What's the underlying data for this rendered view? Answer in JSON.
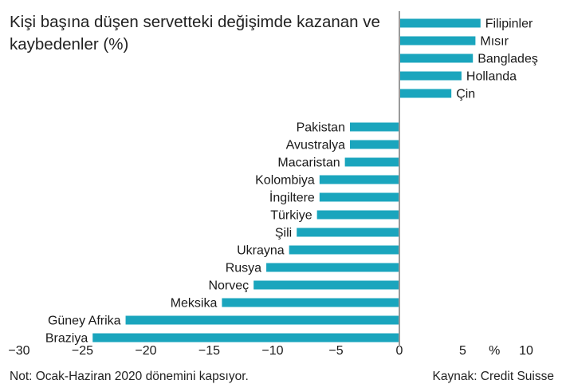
{
  "title": "Kişi başına düşen servetteki değişimde kazanan ve kaybedenler (%)",
  "note": "Not: Ocak-Haziran 2020 dönemini kapsıyor.",
  "source": "Kaynak: Credit Suisse",
  "chart_data": {
    "type": "bar",
    "orientation": "horizontal",
    "title": "Kişi başına düşen servetteki değişimde kazanan ve kaybedenler (%)",
    "xunit_label": "%",
    "xlim": [
      -30,
      10
    ],
    "xticks": [
      -30,
      -25,
      -20,
      -15,
      -10,
      -5,
      0,
      5,
      10
    ],
    "bar_color": "#1aa5bd",
    "categories": [
      "Filipinler",
      "Mısır",
      "Bangladeş",
      "Hollanda",
      "Çin",
      "Pakistan",
      "Avustralya",
      "Macaristan",
      "Kolombiya",
      "İngiltere",
      "Türkiye",
      "Şili",
      "Ukrayna",
      "Rusya",
      "Norveç",
      "Meksika",
      "Güney Afrika",
      "Braziya"
    ],
    "values": [
      6.4,
      6.0,
      5.8,
      4.9,
      4.1,
      -3.9,
      -3.9,
      -4.3,
      -6.3,
      -6.3,
      -6.5,
      -8.1,
      -8.7,
      -10.5,
      -11.5,
      -14.0,
      -21.6,
      -24.2
    ]
  }
}
